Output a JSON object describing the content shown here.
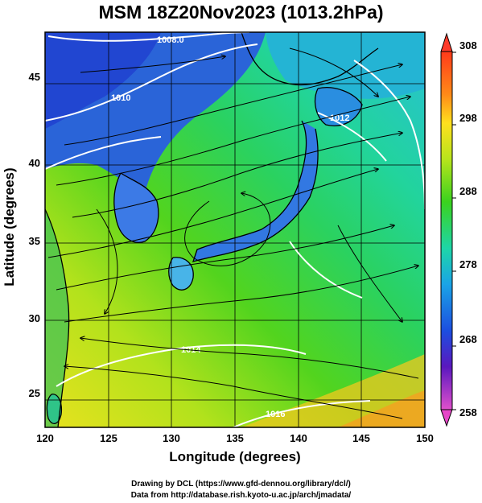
{
  "title": "MSM 18Z20Nov2023 (1013.2hPa)",
  "axes": {
    "xlabel": "Longitude (degrees)",
    "ylabel": "Latitude  (degrees)",
    "xticks": [
      "120",
      "125",
      "130",
      "135",
      "140",
      "145",
      "150"
    ],
    "yticks": [
      "25",
      "30",
      "35",
      "40",
      "45"
    ]
  },
  "colorbar": {
    "ticks": [
      "308",
      "298",
      "288",
      "278",
      "268",
      "258"
    ],
    "colors": [
      "#ff1e6e",
      "#ff3a2a",
      "#ff7a18",
      "#ffb21a",
      "#ffe21e",
      "#cfe61e",
      "#8ddc1c",
      "#38d21e",
      "#1fd37a",
      "#1ed6c8",
      "#19a6e6",
      "#1c63e4",
      "#2a2ed2",
      "#6a16b4",
      "#b00ea8",
      "#e646c8"
    ]
  },
  "contours": [
    "1008.0",
    "1010",
    "1012",
    "1014",
    "1016"
  ],
  "credits": {
    "line1": "Drawing by DCL (https://www.gfd-dennou.org/library/dcl/)",
    "line2": "Data from http://database.rish.kyoto-u.ac.jp/arch/jmadata/"
  }
}
